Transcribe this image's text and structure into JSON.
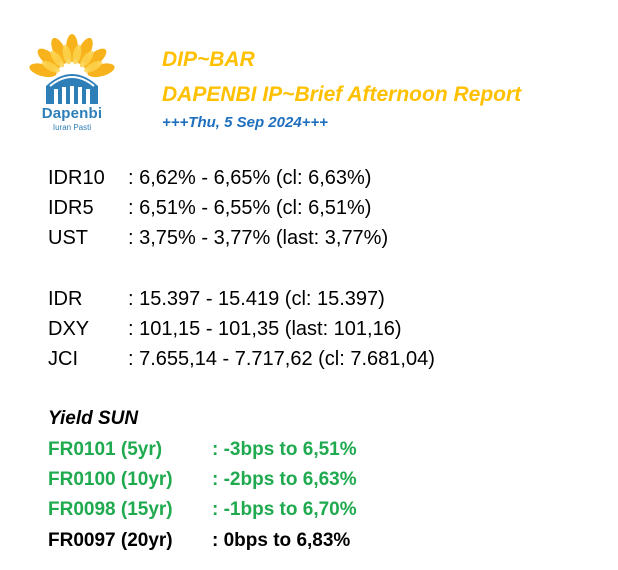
{
  "logo": {
    "name": "Dapenbi",
    "tagline": "Iuran Pasti"
  },
  "header": {
    "title": "DIP~BAR",
    "subtitle": "DAPENBI IP~Brief Afternoon Report",
    "date": "+++Thu, 5 Sep 2024+++"
  },
  "markets": [
    {
      "label": "IDR10",
      "value": ": 6,62% - 6,65% (cl: 6,63%)"
    },
    {
      "label": "IDR5",
      "value": ": 6,51% - 6,55% (cl: 6,51%)"
    },
    {
      "label": "UST",
      "value": ": 3,75% - 3,77% (last: 3,77%)"
    },
    {
      "label": "IDR",
      "value": ": 15.397 - 15.419 (cl: 15.397)"
    },
    {
      "label": "DXY",
      "value": ": 101,15 - 101,35 (last: 101,16)"
    },
    {
      "label": "JCI",
      "value": ": 7.655,14 - 7.717,62 (cl: 7.681,04)"
    }
  ],
  "yield_sun": {
    "heading": "Yield SUN",
    "rows": [
      {
        "series": "FR0101 (5yr)",
        "change": ": -3bps to 6,51%",
        "color": "#1faa4f"
      },
      {
        "series": "FR0100 (10yr)",
        "change": ": -2bps to 6,63%",
        "color": "#1faa4f"
      },
      {
        "series": "FR0098 (15yr)",
        "change": ": -1bps to 6,70%",
        "color": "#1faa4f"
      },
      {
        "series": "FR0097 (20yr)",
        "change": ": 0bps to 6,83%",
        "color": "#000000"
      }
    ]
  }
}
